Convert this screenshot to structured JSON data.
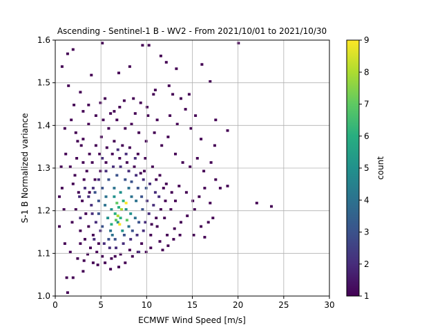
{
  "chart_data": {
    "type": "heatmap",
    "title": "Ascending - Sentinel-1 B - WV2 - From 2021/10/01 to 2021/10/30",
    "xlabel": "ECMWF Wind Speed [m/s]",
    "ylabel": "S-1 B Normalized variance",
    "xlim": [
      0,
      30
    ],
    "ylim": [
      1.0,
      1.6
    ],
    "xticks": [
      0,
      5,
      10,
      15,
      20,
      25,
      30
    ],
    "yticks": [
      1.0,
      1.1,
      1.2,
      1.3,
      1.4,
      1.5,
      1.6
    ],
    "xtick_labels": [
      "0",
      "5",
      "10",
      "15",
      "20",
      "25",
      "30"
    ],
    "ytick_labels": [
      "1.0",
      "1.1",
      "1.2",
      "1.3",
      "1.4",
      "1.5",
      "1.6"
    ],
    "grid": true,
    "bin_size": [
      0.3,
      0.006
    ],
    "colorbar": {
      "label": "count",
      "range": [
        1,
        9
      ],
      "ticks": [
        1,
        2,
        3,
        4,
        5,
        6,
        7,
        8,
        9
      ],
      "tick_labels": [
        "1",
        "2",
        "3",
        "4",
        "5",
        "6",
        "7",
        "8",
        "9"
      ],
      "colormap": "viridis"
    },
    "cells": [
      [
        1.2,
        1.005,
        1
      ],
      [
        1.1,
        1.04,
        1
      ],
      [
        1.8,
        1.04,
        1
      ],
      [
        2.9,
        1.055,
        1
      ],
      [
        3.0,
        1.08,
        1
      ],
      [
        4.5,
        1.07,
        1
      ],
      [
        5.3,
        1.075,
        1
      ],
      [
        6.8,
        1.065,
        1
      ],
      [
        7.5,
        1.075,
        1
      ],
      [
        8.3,
        1.09,
        1
      ],
      [
        8.9,
        1.1,
        1
      ],
      [
        9.8,
        1.1,
        1
      ],
      [
        10.3,
        1.11,
        1
      ],
      [
        11.6,
        1.105,
        1
      ],
      [
        12.2,
        1.115,
        1
      ],
      [
        12.8,
        1.13,
        1
      ],
      [
        13.5,
        1.14,
        1
      ],
      [
        15.0,
        1.14,
        1
      ],
      [
        16.2,
        1.135,
        1
      ],
      [
        15.8,
        1.16,
        1
      ],
      [
        16.6,
        1.17,
        1
      ],
      [
        17.1,
        1.18,
        1
      ],
      [
        16.8,
        1.215,
        1
      ],
      [
        17.9,
        1.25,
        1
      ],
      [
        18.7,
        1.255,
        1
      ],
      [
        17.4,
        1.27,
        1
      ],
      [
        21.9,
        1.215,
        1
      ],
      [
        23.5,
        1.207,
        1
      ],
      [
        16.9,
        1.31,
        1
      ],
      [
        17.3,
        1.35,
        1
      ],
      [
        18.7,
        1.385,
        1
      ],
      [
        17.4,
        1.41,
        1
      ],
      [
        15.8,
        1.365,
        1
      ],
      [
        14.7,
        1.39,
        1
      ],
      [
        15.2,
        1.42,
        1
      ],
      [
        14.1,
        1.435,
        1
      ],
      [
        13.6,
        1.46,
        1
      ],
      [
        14.5,
        1.47,
        1
      ],
      [
        12.7,
        1.47,
        1
      ],
      [
        12.3,
        1.49,
        1
      ],
      [
        10.8,
        1.48,
        1
      ],
      [
        9.9,
        1.44,
        1
      ],
      [
        9.2,
        1.45,
        1
      ],
      [
        8.6,
        1.425,
        1
      ],
      [
        7.4,
        1.455,
        1
      ],
      [
        6.3,
        1.43,
        1
      ],
      [
        5.3,
        1.46,
        1
      ],
      [
        4.8,
        1.45,
        1
      ],
      [
        3.5,
        1.445,
        1
      ],
      [
        2.9,
        1.43,
        1
      ],
      [
        1.9,
        1.445,
        1
      ],
      [
        1.3,
        1.49,
        1
      ],
      [
        2.6,
        1.475,
        1
      ],
      [
        0.6,
        1.535,
        1
      ],
      [
        1.2,
        1.565,
        1
      ],
      [
        1.8,
        1.575,
        1
      ],
      [
        3.8,
        1.515,
        1
      ],
      [
        5.0,
        1.59,
        1
      ],
      [
        6.8,
        1.52,
        1
      ],
      [
        8.0,
        1.535,
        1
      ],
      [
        9.4,
        1.585,
        1
      ],
      [
        10.1,
        1.585,
        1
      ],
      [
        11.4,
        1.56,
        1
      ],
      [
        12.0,
        1.545,
        1
      ],
      [
        13.1,
        1.53,
        1
      ],
      [
        15.9,
        1.54,
        1
      ],
      [
        16.8,
        1.5,
        1
      ],
      [
        10.6,
        1.47,
        1
      ],
      [
        19.9,
        1.59,
        1
      ],
      [
        0.6,
        1.25,
        1
      ],
      [
        0.3,
        1.23,
        1
      ],
      [
        0.8,
        1.2,
        1
      ],
      [
        0.3,
        1.16,
        1
      ],
      [
        0.9,
        1.12,
        1
      ],
      [
        1.5,
        1.1,
        1
      ],
      [
        2.3,
        1.085,
        1
      ],
      [
        0.5,
        1.3,
        1
      ],
      [
        1.0,
        1.33,
        1
      ],
      [
        0.9,
        1.39,
        1
      ],
      [
        1.6,
        1.41,
        1
      ],
      [
        2.1,
        1.38,
        1
      ],
      [
        2.7,
        1.35,
        1
      ],
      [
        2.2,
        1.32,
        1
      ],
      [
        1.5,
        1.3,
        1
      ],
      [
        2.9,
        1.31,
        1
      ],
      [
        3.6,
        1.33,
        1
      ],
      [
        4.3,
        1.35,
        1
      ],
      [
        4.9,
        1.37,
        1
      ],
      [
        5.7,
        1.39,
        1
      ],
      [
        6.6,
        1.41,
        1
      ],
      [
        7.5,
        1.39,
        1
      ],
      [
        8.2,
        1.4,
        1
      ],
      [
        9.0,
        1.38,
        1
      ],
      [
        9.8,
        1.36,
        1
      ],
      [
        10.7,
        1.38,
        1
      ],
      [
        11.5,
        1.35,
        1
      ],
      [
        12.2,
        1.37,
        1
      ],
      [
        13.0,
        1.33,
        1
      ],
      [
        13.8,
        1.31,
        1
      ],
      [
        14.6,
        1.3,
        1
      ],
      [
        15.4,
        1.32,
        1
      ],
      [
        16.1,
        1.29,
        1
      ],
      [
        13.4,
        1.255,
        1
      ],
      [
        14.2,
        1.24,
        1
      ],
      [
        14.9,
        1.22,
        1
      ],
      [
        15.6,
        1.23,
        1
      ],
      [
        16.2,
        1.25,
        1
      ],
      [
        15.1,
        1.2,
        1
      ],
      [
        14.3,
        1.185,
        1
      ],
      [
        13.6,
        1.17,
        1
      ],
      [
        12.9,
        1.155,
        1
      ],
      [
        12.1,
        1.14,
        1
      ],
      [
        11.3,
        1.125,
        1
      ],
      [
        1.8,
        1.26,
        1
      ],
      [
        2.4,
        1.24,
        1
      ],
      [
        2.1,
        1.2,
        1
      ],
      [
        1.7,
        1.17,
        1
      ],
      [
        2.6,
        1.15,
        1
      ],
      [
        3.1,
        1.13,
        1
      ],
      [
        3.7,
        1.11,
        1
      ],
      [
        4.4,
        1.1,
        1
      ],
      [
        5.0,
        1.09,
        1
      ],
      [
        6.0,
        1.085,
        1
      ],
      [
        7.0,
        1.095,
        1
      ],
      [
        8.0,
        1.105,
        1
      ],
      [
        9.3,
        1.12,
        1
      ],
      [
        10.3,
        1.14,
        1
      ],
      [
        11.0,
        1.16,
        1
      ],
      [
        11.8,
        1.18,
        1
      ],
      [
        12.5,
        1.2,
        1
      ],
      [
        13.0,
        1.22,
        1
      ],
      [
        12.6,
        1.24,
        1
      ],
      [
        12.0,
        1.26,
        1
      ],
      [
        11.3,
        1.28,
        1
      ],
      [
        10.5,
        1.3,
        1
      ],
      [
        9.7,
        1.32,
        1
      ],
      [
        8.9,
        1.33,
        1
      ],
      [
        8.0,
        1.345,
        1
      ],
      [
        7.2,
        1.35,
        1
      ],
      [
        6.3,
        1.36,
        1
      ],
      [
        5.5,
        1.345,
        1
      ],
      [
        4.7,
        1.33,
        1
      ],
      [
        3.9,
        1.31,
        1
      ],
      [
        3.3,
        1.29,
        1
      ],
      [
        3.0,
        1.27,
        1
      ],
      [
        2.8,
        1.22,
        1
      ],
      [
        3.2,
        1.19,
        1
      ],
      [
        3.5,
        1.16,
        1
      ],
      [
        4.0,
        1.14,
        1
      ],
      [
        4.6,
        1.12,
        1
      ],
      [
        9.6,
        1.29,
        1
      ],
      [
        10.9,
        1.27,
        1
      ],
      [
        11.7,
        1.25,
        1
      ],
      [
        11.9,
        1.22,
        1
      ],
      [
        11.4,
        1.2,
        1
      ],
      [
        10.9,
        1.18,
        1
      ],
      [
        10.4,
        1.165,
        1
      ],
      [
        3.6,
        1.24,
        1
      ],
      [
        4.2,
        1.27,
        1
      ],
      [
        4.8,
        1.29,
        1
      ],
      [
        5.4,
        1.31,
        1
      ],
      [
        6.1,
        1.33,
        1
      ],
      [
        6.9,
        1.32,
        1
      ],
      [
        7.7,
        1.31,
        1
      ],
      [
        8.5,
        1.3,
        1
      ],
      [
        9.2,
        1.285,
        1
      ],
      [
        2.9,
        1.365,
        1
      ],
      [
        3.5,
        1.4,
        1
      ],
      [
        4.3,
        1.42,
        1
      ],
      [
        5.1,
        1.41,
        1
      ],
      [
        5.9,
        1.425,
        1
      ],
      [
        6.9,
        1.44,
        1
      ],
      [
        8.4,
        1.46,
        1
      ],
      [
        10.0,
        1.42,
        1
      ],
      [
        11.0,
        1.41,
        1
      ],
      [
        12.4,
        1.42,
        1
      ],
      [
        13.2,
        1.4,
        1
      ],
      [
        2.3,
        1.36,
        1
      ],
      [
        2.0,
        1.28,
        1
      ],
      [
        2.6,
        1.12,
        1
      ],
      [
        3.4,
        1.095,
        1
      ],
      [
        4.0,
        1.075,
        1
      ],
      [
        5.9,
        1.06,
        1
      ],
      [
        6.4,
        1.09,
        1
      ],
      [
        3.1,
        1.25,
        2
      ],
      [
        3.8,
        1.21,
        2
      ],
      [
        4.3,
        1.17,
        2
      ],
      [
        4.8,
        1.15,
        2
      ],
      [
        5.2,
        1.12,
        2
      ],
      [
        5.8,
        1.11,
        2
      ],
      [
        6.5,
        1.11,
        2
      ],
      [
        7.3,
        1.12,
        2
      ],
      [
        8.1,
        1.13,
        2
      ],
      [
        8.8,
        1.14,
        2
      ],
      [
        9.5,
        1.15,
        2
      ],
      [
        10.1,
        1.19,
        2
      ],
      [
        10.6,
        1.21,
        2
      ],
      [
        10.8,
        1.24,
        2
      ],
      [
        10.2,
        1.26,
        2
      ],
      [
        9.5,
        1.27,
        2
      ],
      [
        8.7,
        1.28,
        2
      ],
      [
        7.9,
        1.29,
        2
      ],
      [
        7.0,
        1.3,
        2
      ],
      [
        6.2,
        1.3,
        2
      ],
      [
        5.4,
        1.29,
        2
      ],
      [
        4.6,
        1.27,
        2
      ],
      [
        4.0,
        1.25,
        2
      ],
      [
        3.5,
        1.23,
        2
      ],
      [
        3.9,
        1.19,
        2
      ],
      [
        9.9,
        1.22,
        2
      ],
      [
        9.7,
        1.17,
        2
      ],
      [
        5.0,
        1.32,
        2
      ],
      [
        7.6,
        1.33,
        2
      ],
      [
        8.6,
        1.32,
        2
      ],
      [
        4.1,
        1.13,
        2
      ],
      [
        9.0,
        1.1,
        2
      ],
      [
        2.6,
        1.18,
        2
      ],
      [
        2.5,
        1.23,
        2
      ],
      [
        11.2,
        1.23,
        2
      ],
      [
        6.7,
        1.34,
        2
      ],
      [
        5.7,
        1.13,
        3
      ],
      [
        6.4,
        1.13,
        3
      ],
      [
        7.4,
        1.14,
        3
      ],
      [
        8.3,
        1.15,
        3
      ],
      [
        9.0,
        1.17,
        3
      ],
      [
        9.4,
        1.2,
        3
      ],
      [
        9.3,
        1.23,
        3
      ],
      [
        8.9,
        1.25,
        3
      ],
      [
        8.2,
        1.265,
        3
      ],
      [
        7.5,
        1.27,
        3
      ],
      [
        6.6,
        1.28,
        3
      ],
      [
        5.7,
        1.27,
        3
      ],
      [
        5.0,
        1.25,
        3
      ],
      [
        4.6,
        1.22,
        3
      ],
      [
        4.6,
        1.19,
        3
      ],
      [
        5.0,
        1.16,
        3
      ],
      [
        4.2,
        1.24,
        3
      ],
      [
        9.8,
        1.25,
        3
      ],
      [
        5.9,
        1.15,
        4
      ],
      [
        6.3,
        1.25,
        4
      ],
      [
        7.9,
        1.25,
        4
      ],
      [
        8.7,
        1.22,
        4
      ],
      [
        8.6,
        1.18,
        4
      ],
      [
        7.9,
        1.16,
        4
      ],
      [
        5.3,
        1.21,
        4
      ],
      [
        5.4,
        1.23,
        4
      ],
      [
        6.1,
        1.14,
        4
      ],
      [
        8.2,
        1.23,
        4
      ],
      [
        6.0,
        1.2,
        5
      ],
      [
        6.7,
        1.17,
        5
      ],
      [
        7.0,
        1.24,
        5
      ],
      [
        7.6,
        1.2,
        5
      ],
      [
        5.6,
        1.18,
        5
      ],
      [
        8.1,
        1.19,
        5
      ],
      [
        6.3,
        1.23,
        5
      ],
      [
        7.2,
        1.15,
        5
      ],
      [
        6.4,
        1.19,
        6
      ],
      [
        7.3,
        1.22,
        6
      ],
      [
        7.0,
        1.18,
        6
      ],
      [
        6.8,
        1.205,
        6
      ],
      [
        6.0,
        1.165,
        6
      ],
      [
        6.6,
        1.215,
        7
      ],
      [
        7.7,
        1.175,
        7
      ],
      [
        6.5,
        1.175,
        7
      ],
      [
        7.1,
        1.2,
        8
      ],
      [
        6.7,
        1.185,
        8
      ],
      [
        6.9,
        1.165,
        9
      ],
      [
        7.6,
        1.215,
        9
      ]
    ]
  }
}
